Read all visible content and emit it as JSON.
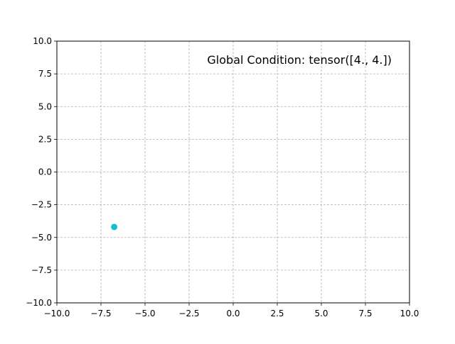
{
  "chart_data": {
    "type": "scatter",
    "title": "",
    "xlabel": "",
    "ylabel": "",
    "xlim": [
      -10,
      10
    ],
    "ylim": [
      -10,
      10
    ],
    "xticks": [
      -10,
      -7.5,
      -5,
      -2.5,
      0,
      2.5,
      5,
      7.5,
      10
    ],
    "yticks": [
      -10,
      -7.5,
      -5,
      -2.5,
      0,
      2.5,
      5,
      7.5,
      10
    ],
    "xtick_labels": [
      "−10.0",
      "−7.5",
      "−5.0",
      "−2.5",
      "0.0",
      "2.5",
      "5.0",
      "7.5",
      "10.0"
    ],
    "ytick_labels": [
      "−10.0",
      "−7.5",
      "−5.0",
      "−2.5",
      "0.0",
      "2.5",
      "5.0",
      "7.5",
      "10.0"
    ],
    "grid": true,
    "series": [
      {
        "points": [
          {
            "x": -6.75,
            "y": -4.2
          }
        ],
        "color": "#17becf"
      }
    ],
    "annotation": "Global Condition: tensor([4., 4.])"
  }
}
